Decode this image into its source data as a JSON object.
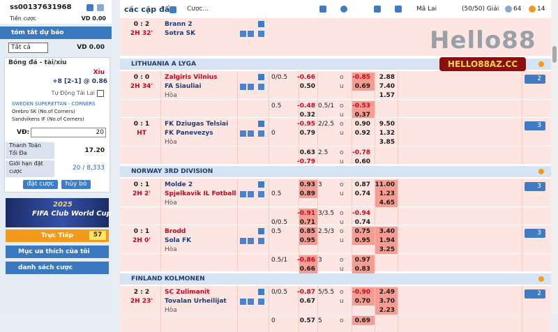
{
  "sidebar": {
    "account": "ss00137631968",
    "stake_label": "Tiền cược",
    "stake_value": "VD 0.00",
    "summary_title": "tóm tắt dự báo",
    "filter": "Tất cả",
    "filter_value": "VD 0.00",
    "slip": {
      "sport": "Bóng đá - tài/xỉu",
      "pick": "Xỉu",
      "line": "+8 [2-1] @ 0.86",
      "auto_reload": "Tự Động Tải Lại",
      "league": "SWEDEN SUPERETTAN - CORNERS",
      "home": "Orebro SK (No.of Corners)",
      "away": "Sandvikens IF (No.of Corners)",
      "stake_label": "VĐ:",
      "stake": "20",
      "max_payout_label": "Thanh Toán Tối Đa",
      "max_payout": "17.20",
      "limit_label": "Giới hạn đặt cược",
      "limit": "20 / 8,333",
      "place": "đặt cược",
      "cancel": "hủy bỏ"
    },
    "banner": {
      "year": "2025",
      "title": "FIFA Club World Cup"
    },
    "live": {
      "label": "Trực Tiếp",
      "count": "57"
    },
    "favorites": "Mục ưa thích của tôi",
    "bets": "danh sách cược"
  },
  "toolbar": {
    "title": "các cặp đấu",
    "search": "Cược...",
    "odds_type": "Mã Lai",
    "leagues": "(50/50) Giải",
    "count_a": "64",
    "count_b": "14"
  },
  "watermark": {
    "logo": "Hello88",
    "url": "HELLO88AZ.CC"
  },
  "labels": {
    "draw": "Hòa",
    "over": "o",
    "under": "u"
  },
  "sections": [
    {
      "matches": [
        {
          "score": "0 : 2",
          "time": "2H 32'",
          "teams": [
            "Brann 2",
            "Sotra SK"
          ],
          "lines": []
        }
      ]
    },
    {
      "league": "LITHUANIA A LYGA",
      "matches": [
        {
          "score": "0 : 0",
          "time": "2H 34'",
          "teams": [
            "Zalgiris Vilnius",
            "FA Siauliai"
          ],
          "fav": 0,
          "more": "2",
          "lines": [
            {
              "hdp": "0/0.5",
              "hdp_row": 0,
              "home": "-0.66",
              "away": "0.50",
              "over": "-0.85",
              "under": "0.69",
              "x12": [
                "2.88",
                "7.40",
                "1.57"
              ],
              "hl": [
                "over",
                "under"
              ]
            },
            {
              "hdp": "0.5",
              "hdp_row": 0,
              "home": "-0.48",
              "away": "0.32",
              "ou": "0.5/1",
              "over": "-0.53",
              "under": "0.37",
              "hl": [
                "over",
                "under"
              ]
            }
          ]
        },
        {
          "score": "0 : 1",
          "time": "HT",
          "teams": [
            "FK Dziugas Telsiai",
            "FK Panevezys"
          ],
          "more": "3",
          "lines": [
            {
              "hdp": "0",
              "hdp_row": 1,
              "home": "-0.95",
              "away": "0.79",
              "ou": "2/2.5",
              "over": "0.90",
              "under": "0.92",
              "x12": [
                "9.50",
                "1.32",
                "3.85"
              ],
              "hl": []
            },
            {
              "home": "0.63",
              "away": "-0.79",
              "ou": "2.5",
              "over": "-0.78",
              "under": "0.60",
              "hl": []
            }
          ]
        }
      ]
    },
    {
      "league": "NORWAY 3RD DIVISION",
      "matches": [
        {
          "score": "0 : 1",
          "time": "2H 2'",
          "teams": [
            "Molde 2",
            "Spjelkavik IL Fotball"
          ],
          "fav": 1,
          "more": "3",
          "lines": [
            {
              "hdp": "0.5",
              "hdp_row": 1,
              "home": "0.93",
              "away": "0.89",
              "ou": "3",
              "over": "0.87",
              "under": "0.74",
              "x12": [
                "11.00",
                "1.23",
                "4.65"
              ],
              "hl": [
                "home",
                "away",
                "x12"
              ]
            },
            {
              "hdp": "0/0.5",
              "hdp_row": 1,
              "home": "-0.91",
              "away": "0.71",
              "ou": "3/3.5",
              "over": "-0.94",
              "under": "0.74",
              "hl": [
                "home",
                "away"
              ]
            }
          ]
        },
        {
          "score": "0 : 1",
          "time": "2H 0'",
          "teams": [
            "Brodd",
            "Sola FK"
          ],
          "fav": 0,
          "more": "3",
          "lines": [
            {
              "hdp": "0.5",
              "hdp_row": 0,
              "home": "0.85",
              "away": "0.95",
              "ou": "2.5/3",
              "over": "0.75",
              "under": "0.95",
              "x12": [
                "3.40",
                "1.94",
                "3.25"
              ],
              "hl": [
                "home",
                "away",
                "over",
                "under",
                "x12"
              ]
            },
            {
              "hdp": "0.5/1",
              "hdp_row": 0,
              "home": "-0.86",
              "away": "0.66",
              "ou": "3",
              "over": "0.97",
              "under": "0.83",
              "hl": [
                "home",
                "away",
                "over",
                "under"
              ]
            }
          ]
        }
      ]
    },
    {
      "league": "FINLAND KOLMONEN",
      "matches": [
        {
          "score": "2 : 2",
          "time": "2H 23'",
          "teams": [
            "SC Zulimanit",
            "Tovalan Urheilijat"
          ],
          "fav": 0,
          "more": "2",
          "lines": [
            {
              "hdp": "0/0.5",
              "hdp_row": 0,
              "home": "-0.87",
              "away": "0.67",
              "ou": "5/5.5",
              "over": "-0.90",
              "under": "0.70",
              "x12": [
                "2.49",
                "3.70",
                "2.23"
              ],
              "hl": [
                "over",
                "under",
                "x12"
              ]
            },
            {
              "hdp": "0",
              "hdp_row": 0,
              "home": "0.57",
              "ou": "5",
              "over": "0.69",
              "hl": [
                "over"
              ]
            }
          ]
        }
      ]
    }
  ]
}
